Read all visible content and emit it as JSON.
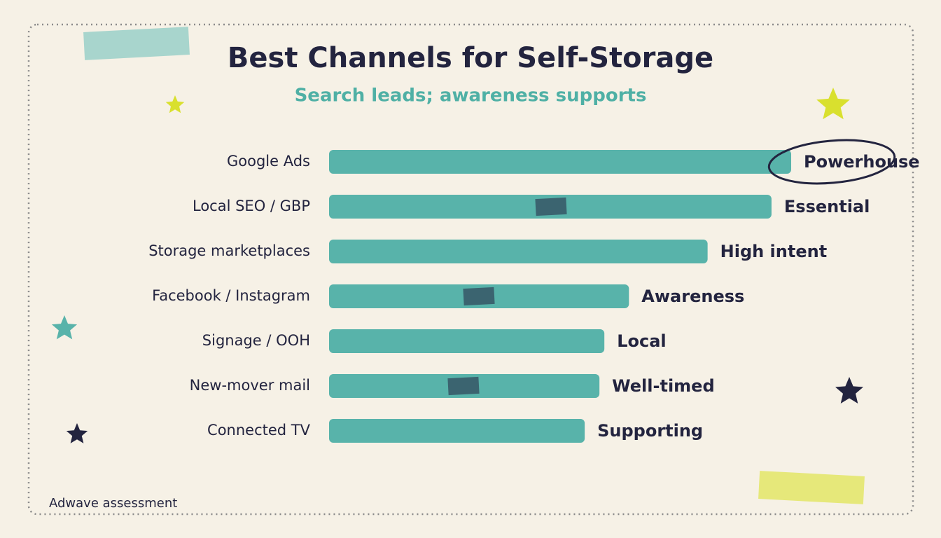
{
  "chart_data": {
    "type": "bar",
    "orientation": "horizontal",
    "title": "Best Channels for Self-Storage",
    "subtitle": "Search leads; awareness supports",
    "categories": [
      "Google Ads",
      "Local SEO / GBP",
      "Storage marketplaces",
      "Facebook / Instagram",
      "Signage / OOH",
      "New-mover mail",
      "Connected TV"
    ],
    "values": [
      94,
      90,
      77,
      61,
      56,
      55,
      52
    ],
    "tags": [
      "Powerhouse",
      "Essential",
      "High intent",
      "Awareness",
      "Local",
      "Well-timed",
      "Supporting"
    ],
    "color": "#58b3aa",
    "source": "Adwave assessment"
  }
}
